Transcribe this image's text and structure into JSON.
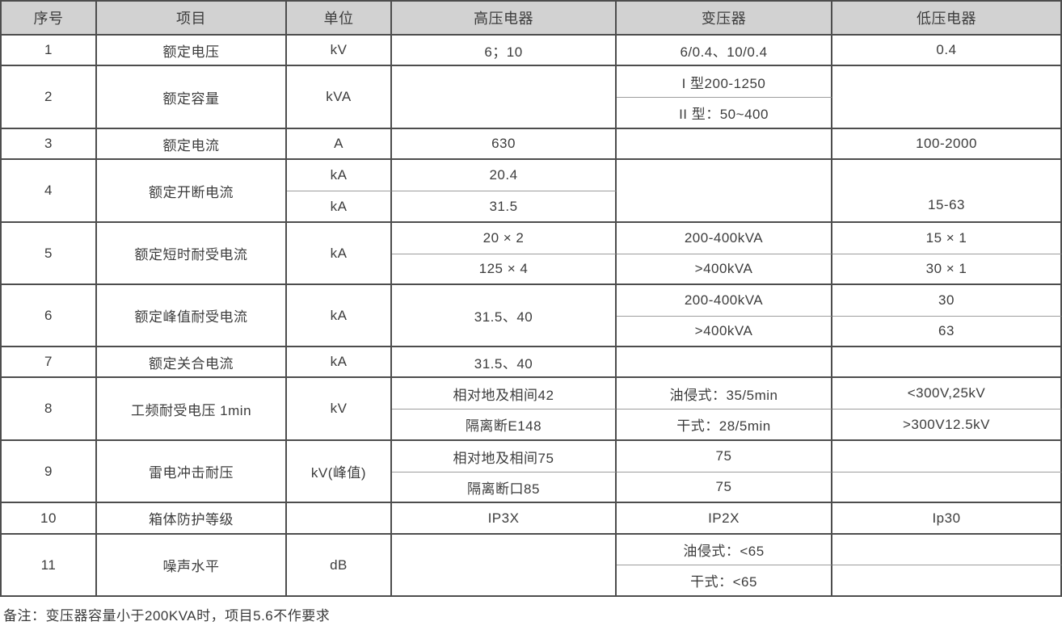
{
  "header": {
    "columns": [
      "序号",
      "项目",
      "单位",
      "高压电器",
      "变压器",
      "低压电器"
    ]
  },
  "rows": {
    "r1": {
      "no": "1",
      "item": "额定电压",
      "unit": "kV",
      "hv": "6；10",
      "tr": "6/0.4、10/0.4",
      "lv": "0.4"
    },
    "r2": {
      "no": "2",
      "item": "额定容量",
      "unit": "kVA",
      "hv": "",
      "tr_a": "I 型200-1250",
      "tr_b": "II 型：50~400",
      "lv": ""
    },
    "r3": {
      "no": "3",
      "item": "额定电流",
      "unit": "A",
      "hv": "630",
      "tr": "",
      "lv": "100-2000"
    },
    "r4": {
      "no": "4",
      "item": "额定开断电流",
      "unit_a": "kA",
      "unit_b": "kA",
      "hv_a": "20.4",
      "hv_b": "31.5",
      "tr": "",
      "lv": "15-63"
    },
    "r5": {
      "no": "5",
      "item": "额定短时耐受电流",
      "unit": "kA",
      "hv_a": "20 × 2",
      "hv_b": "125 × 4",
      "tr_a": "200-400kVA",
      "tr_b": ">400kVA",
      "lv_a": "15 × 1",
      "lv_b": "30 × 1"
    },
    "r6": {
      "no": "6",
      "item": "额定峰值耐受电流",
      "unit": "kA",
      "hv": "31.5、40",
      "tr_a": "200-400kVA",
      "tr_b": ">400kVA",
      "lv_a": "30",
      "lv_b": "63"
    },
    "r7": {
      "no": "7",
      "item": "额定关合电流",
      "unit": "kA",
      "hv": "31.5、40",
      "tr": "",
      "lv": ""
    },
    "r8": {
      "no": "8",
      "item": "工频耐受电压 1min",
      "unit": "kV",
      "hv_a": "相对地及相间42",
      "hv_b": "隔离断E148",
      "tr_a": "油侵式：35/5min",
      "tr_b": "干式：28/5min",
      "lv_a": "<300V,25kV",
      "lv_b": ">300V12.5kV"
    },
    "r9": {
      "no": "9",
      "item": "雷电冲击耐压",
      "unit": "kV(峰值)",
      "hv_a": "相对地及相间75",
      "hv_b": "隔离断口85",
      "tr_a": "75",
      "tr_b": "75",
      "lv_a": "",
      "lv_b": ""
    },
    "r10": {
      "no": "10",
      "item": "箱体防护等级",
      "unit": "",
      "hv": "IP3X",
      "tr": "IP2X",
      "lv": "Ip30"
    },
    "r11": {
      "no": "11",
      "item": "噪声水平",
      "unit": "dB",
      "hv": "",
      "tr_a": "油侵式：<65",
      "tr_b": "干式：<65",
      "lv_a": "",
      "lv_b": ""
    }
  },
  "note": "备注：变压器容量小于200KVA时，项目5.6不作要求"
}
